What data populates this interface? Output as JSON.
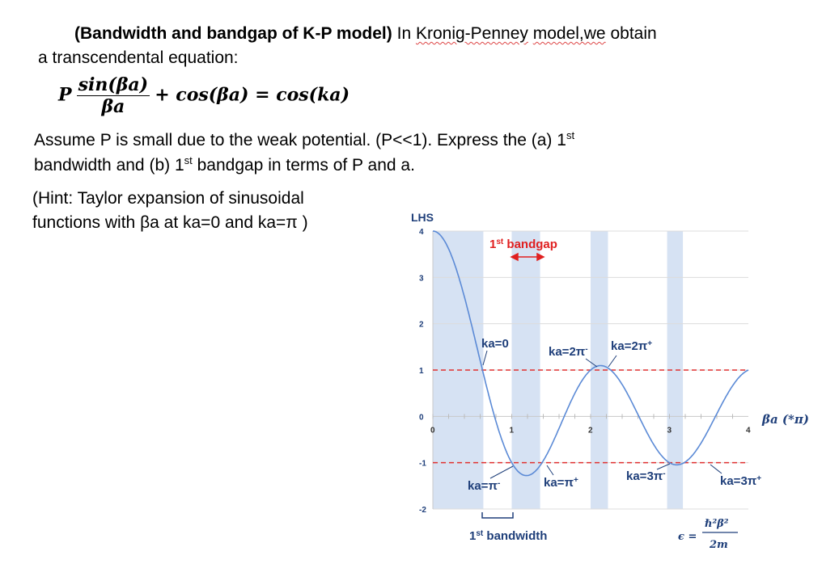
{
  "problem": {
    "title_bold": "(Bandwidth and bandgap of K-P model)",
    "title_rest_1": "In",
    "title_link": "Kronig-Penney",
    "title_rest_2": "model,we",
    "title_rest_3": "obtain",
    "line2": "a transcendental equation:",
    "equation": {
      "P": "P",
      "num": "sin(βa)",
      "den": "βa",
      "rest": "+ cos(βa) = cos(ka)"
    },
    "assume_line1_a": "Assume P is small due to the weak potential. (P<<1). Express the (a) 1",
    "assume_line1_sup": "st",
    "assume_line2_a": "bandwidth and (b) 1",
    "assume_line2_sup": "st",
    "assume_line2_b": " bandgap in terms of P and a.",
    "hint_line1": "(Hint:  Taylor  expansion  of  sinusoidal",
    "hint_line2": "functions with βa at ka=0 and ka=π )"
  },
  "chart_data": {
    "type": "line",
    "xlabel": "βa (*π)",
    "ylabel": "LHS",
    "xlim": [
      0,
      4
    ],
    "ylim": [
      -2,
      4
    ],
    "x_ticks": [
      "0",
      "1",
      "2",
      "3",
      "4"
    ],
    "y_ticks": [
      "4",
      "3",
      "2",
      "1",
      "0",
      "-1",
      "-2"
    ],
    "grid": true,
    "reference_lines": [
      1,
      -1
    ],
    "shaded_bands_x_pi": [
      [
        0,
        0.64
      ],
      [
        1.0,
        1.36
      ],
      [
        2.0,
        2.22
      ],
      [
        2.97,
        3.17
      ]
    ],
    "curve": "P*sin(βa)/βa + cos(βa)",
    "annotations": {
      "bandgap_sup": "st",
      "bandgap_1": "1",
      "bandgap_rest": " bandgap",
      "ka0": "ka=0",
      "ka2pi_minus": "ka=2π",
      "ka2pi_minus_sup": "-",
      "ka2pi_plus": "ka=2π",
      "ka2pi_plus_sup": "+",
      "kapi_minus": "ka=π",
      "kapi_minus_sup": "-",
      "kapi_plus": "ka=π",
      "kapi_plus_sup": "+",
      "ka3pi_minus": "ka=3π",
      "ka3pi_minus_sup": "-",
      "ka3pi_plus": "ka=3π",
      "ka3pi_plus_sup": "+",
      "bandwidth_1": "1",
      "bandwidth_sup": "st",
      "bandwidth_rest": " bandwidth",
      "energy_lhs": "ϵ =",
      "energy_num": "ℏ²β²",
      "energy_den": "2m"
    },
    "colors": {
      "curve": "#5b8ad6",
      "band": "#d6e2f3",
      "dash": "#e03030",
      "annotation": "#1f3f7a",
      "highlight": "#e02020",
      "axis_label": "#1f3f7a"
    }
  }
}
